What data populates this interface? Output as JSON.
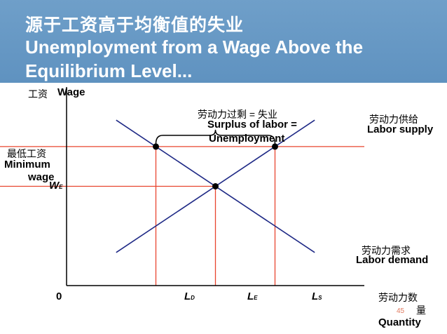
{
  "header": {
    "title_cn": "源于工资高于均衡值的失业",
    "title_en_line1": "Unemployment from a Wage Above the",
    "title_en_line2": "Equilibrium Level..."
  },
  "axes": {
    "y_label_cn": "工资",
    "y_label_en": "Wage",
    "x_label_cn_1": "劳动力数",
    "x_label_cn_2": "量",
    "x_label_en": "Quantity",
    "origin": "0"
  },
  "annotations": {
    "surplus_cn": "劳动力过剩 = 失业",
    "surplus_en_1": "Surplus of labor =",
    "surplus_en_2": "Unemployment",
    "supply_cn": "劳动力供给",
    "supply_en": "Labor supply",
    "demand_cn": "劳动力需求",
    "demand_en": "Labor demand",
    "min_wage_cn": "最低工资",
    "min_wage_en_1": "Minimum",
    "min_wage_en_2": "wage",
    "we_main": "W",
    "we_sub": "E",
    "ld_main": "L",
    "ld_sub": "D",
    "le_main": "L",
    "le_sub": "E",
    "ls_main": "L",
    "ls_sub": "S"
  },
  "page_number": "45",
  "colors": {
    "header": "#6a9ac6",
    "curves": "#1f2a86",
    "guides": "#e8452f",
    "axes": "#000000"
  },
  "chart_data": {
    "type": "line",
    "title": "",
    "xlabel": "Quantity",
    "ylabel": "Wage",
    "series": [
      {
        "name": "Labor supply",
        "x": [
          1.0,
          5.0
        ],
        "y": [
          1.0,
          5.0
        ]
      },
      {
        "name": "Labor demand",
        "x": [
          1.0,
          5.0
        ],
        "y": [
          5.0,
          1.0
        ]
      }
    ],
    "points": [
      {
        "label": "Minimum wage with L_D",
        "x": 1.8,
        "y": 4.2
      },
      {
        "label": "Equilibrium (L_E, W_E)",
        "x": 3.0,
        "y": 3.0
      },
      {
        "label": "Minimum wage with L_S",
        "x": 4.2,
        "y": 4.2
      }
    ],
    "hlines": [
      {
        "label": "Minimum wage",
        "y": 4.2
      },
      {
        "label": "W_E",
        "y": 3.0
      }
    ],
    "vlines": [
      {
        "label": "L_D",
        "x": 1.8
      },
      {
        "label": "L_E",
        "x": 3.0
      },
      {
        "label": "L_S",
        "x": 4.2
      }
    ],
    "xlim": [
      0,
      6
    ],
    "ylim": [
      0,
      6
    ],
    "grid": false
  }
}
